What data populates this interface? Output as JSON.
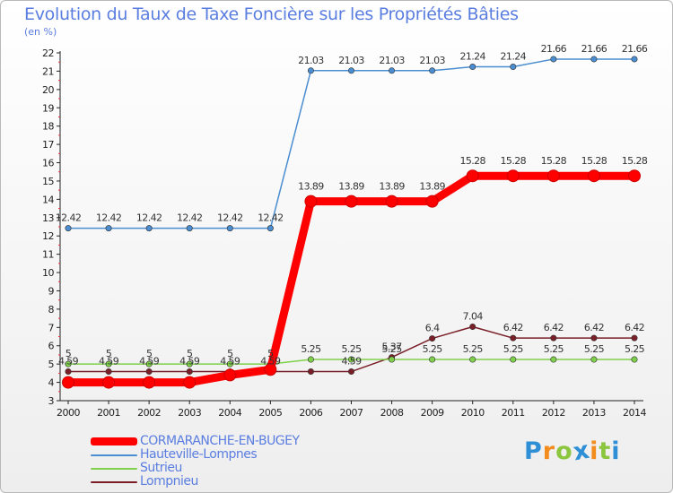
{
  "title": "Evolution du Taux de Taxe Foncière sur les Propriétés Bâties",
  "unit": "(en %)",
  "logo": {
    "text": "Proxiti",
    "letters": [
      "P",
      "r",
      "o",
      "x",
      "i",
      "t",
      "i"
    ],
    "colors": [
      "#2e8fd6",
      "#f28c1e",
      "#8cc63f",
      "#2e8fd6",
      "#f28c1e",
      "#8cc63f",
      "#2e8fd6"
    ]
  },
  "chart_data": {
    "type": "line",
    "title": "Evolution du Taux de Taxe Foncière sur les Propriétés Bâties",
    "ylabel": "(en %)",
    "xlabel": "",
    "ylim": [
      3,
      22
    ],
    "yticks": [
      3,
      4,
      5,
      6,
      7,
      8,
      9,
      10,
      11,
      12,
      13,
      14,
      15,
      16,
      17,
      18,
      19,
      20,
      21,
      22
    ],
    "categories": [
      "2000",
      "2001",
      "2002",
      "2003",
      "2004",
      "2005",
      "2006",
      "2007",
      "2008",
      "2009",
      "2010",
      "2011",
      "2012",
      "2013",
      "2014"
    ],
    "grid": false,
    "legend_position": "bottom-left",
    "series": [
      {
        "name": "Lompnieu",
        "color": "#7a1f28",
        "emphasis": false,
        "values": [
          4.59,
          4.59,
          4.59,
          4.59,
          4.59,
          4.59,
          4.59,
          4.59,
          5.37,
          6.4,
          7.04,
          6.42,
          6.42,
          6.42,
          6.42
        ],
        "labels": [
          "4.59",
          "4.59",
          "4.59",
          "4.59",
          "4.59",
          "4.59",
          "",
          "4.59",
          "5.37",
          "6.4",
          "7.04",
          "6.42",
          "6.42",
          "6.42",
          "6.42"
        ]
      },
      {
        "name": "Sutrieu",
        "color": "#7fd04a",
        "emphasis": false,
        "values": [
          5,
          5,
          5,
          5,
          5,
          5,
          5.25,
          5.25,
          5.25,
          5.25,
          5.25,
          5.25,
          5.25,
          5.25,
          5.25
        ],
        "labels": [
          "5",
          "5",
          "5",
          "5",
          "5",
          "5",
          "5.25",
          "5.25",
          "5.25",
          "5.25",
          "5.25",
          "5.25",
          "5.25",
          "5.25",
          "5.25"
        ]
      },
      {
        "name": "Hauteville-Lompnes",
        "color": "#4a8dd0",
        "emphasis": false,
        "values": [
          12.42,
          12.42,
          12.42,
          12.42,
          12.42,
          12.42,
          21.03,
          21.03,
          21.03,
          21.03,
          21.24,
          21.24,
          21.66,
          21.66,
          21.66
        ],
        "labels": [
          "12.42",
          "12.42",
          "12.42",
          "12.42",
          "12.42",
          "12.42",
          "21.03",
          "21.03",
          "21.03",
          "21.03",
          "21.24",
          "21.24",
          "21.66",
          "21.66",
          "21.66"
        ]
      },
      {
        "name": "CORMARANCHE-EN-BUGEY",
        "color": "#ff0000",
        "emphasis": true,
        "values": [
          4.0,
          4.0,
          4.0,
          4.0,
          4.4,
          4.7,
          13.89,
          13.89,
          13.89,
          13.89,
          15.28,
          15.28,
          15.28,
          15.28,
          15.28
        ],
        "labels": [
          "",
          "",
          "",
          "",
          "",
          "",
          "13.89",
          "13.89",
          "13.89",
          "13.89",
          "15.28",
          "15.28",
          "15.28",
          "15.28",
          "15.28"
        ]
      }
    ],
    "legend_order": [
      "CORMARANCHE-EN-BUGEY",
      "Hauteville-Lompnes",
      "Sutrieu",
      "Lompnieu"
    ]
  }
}
